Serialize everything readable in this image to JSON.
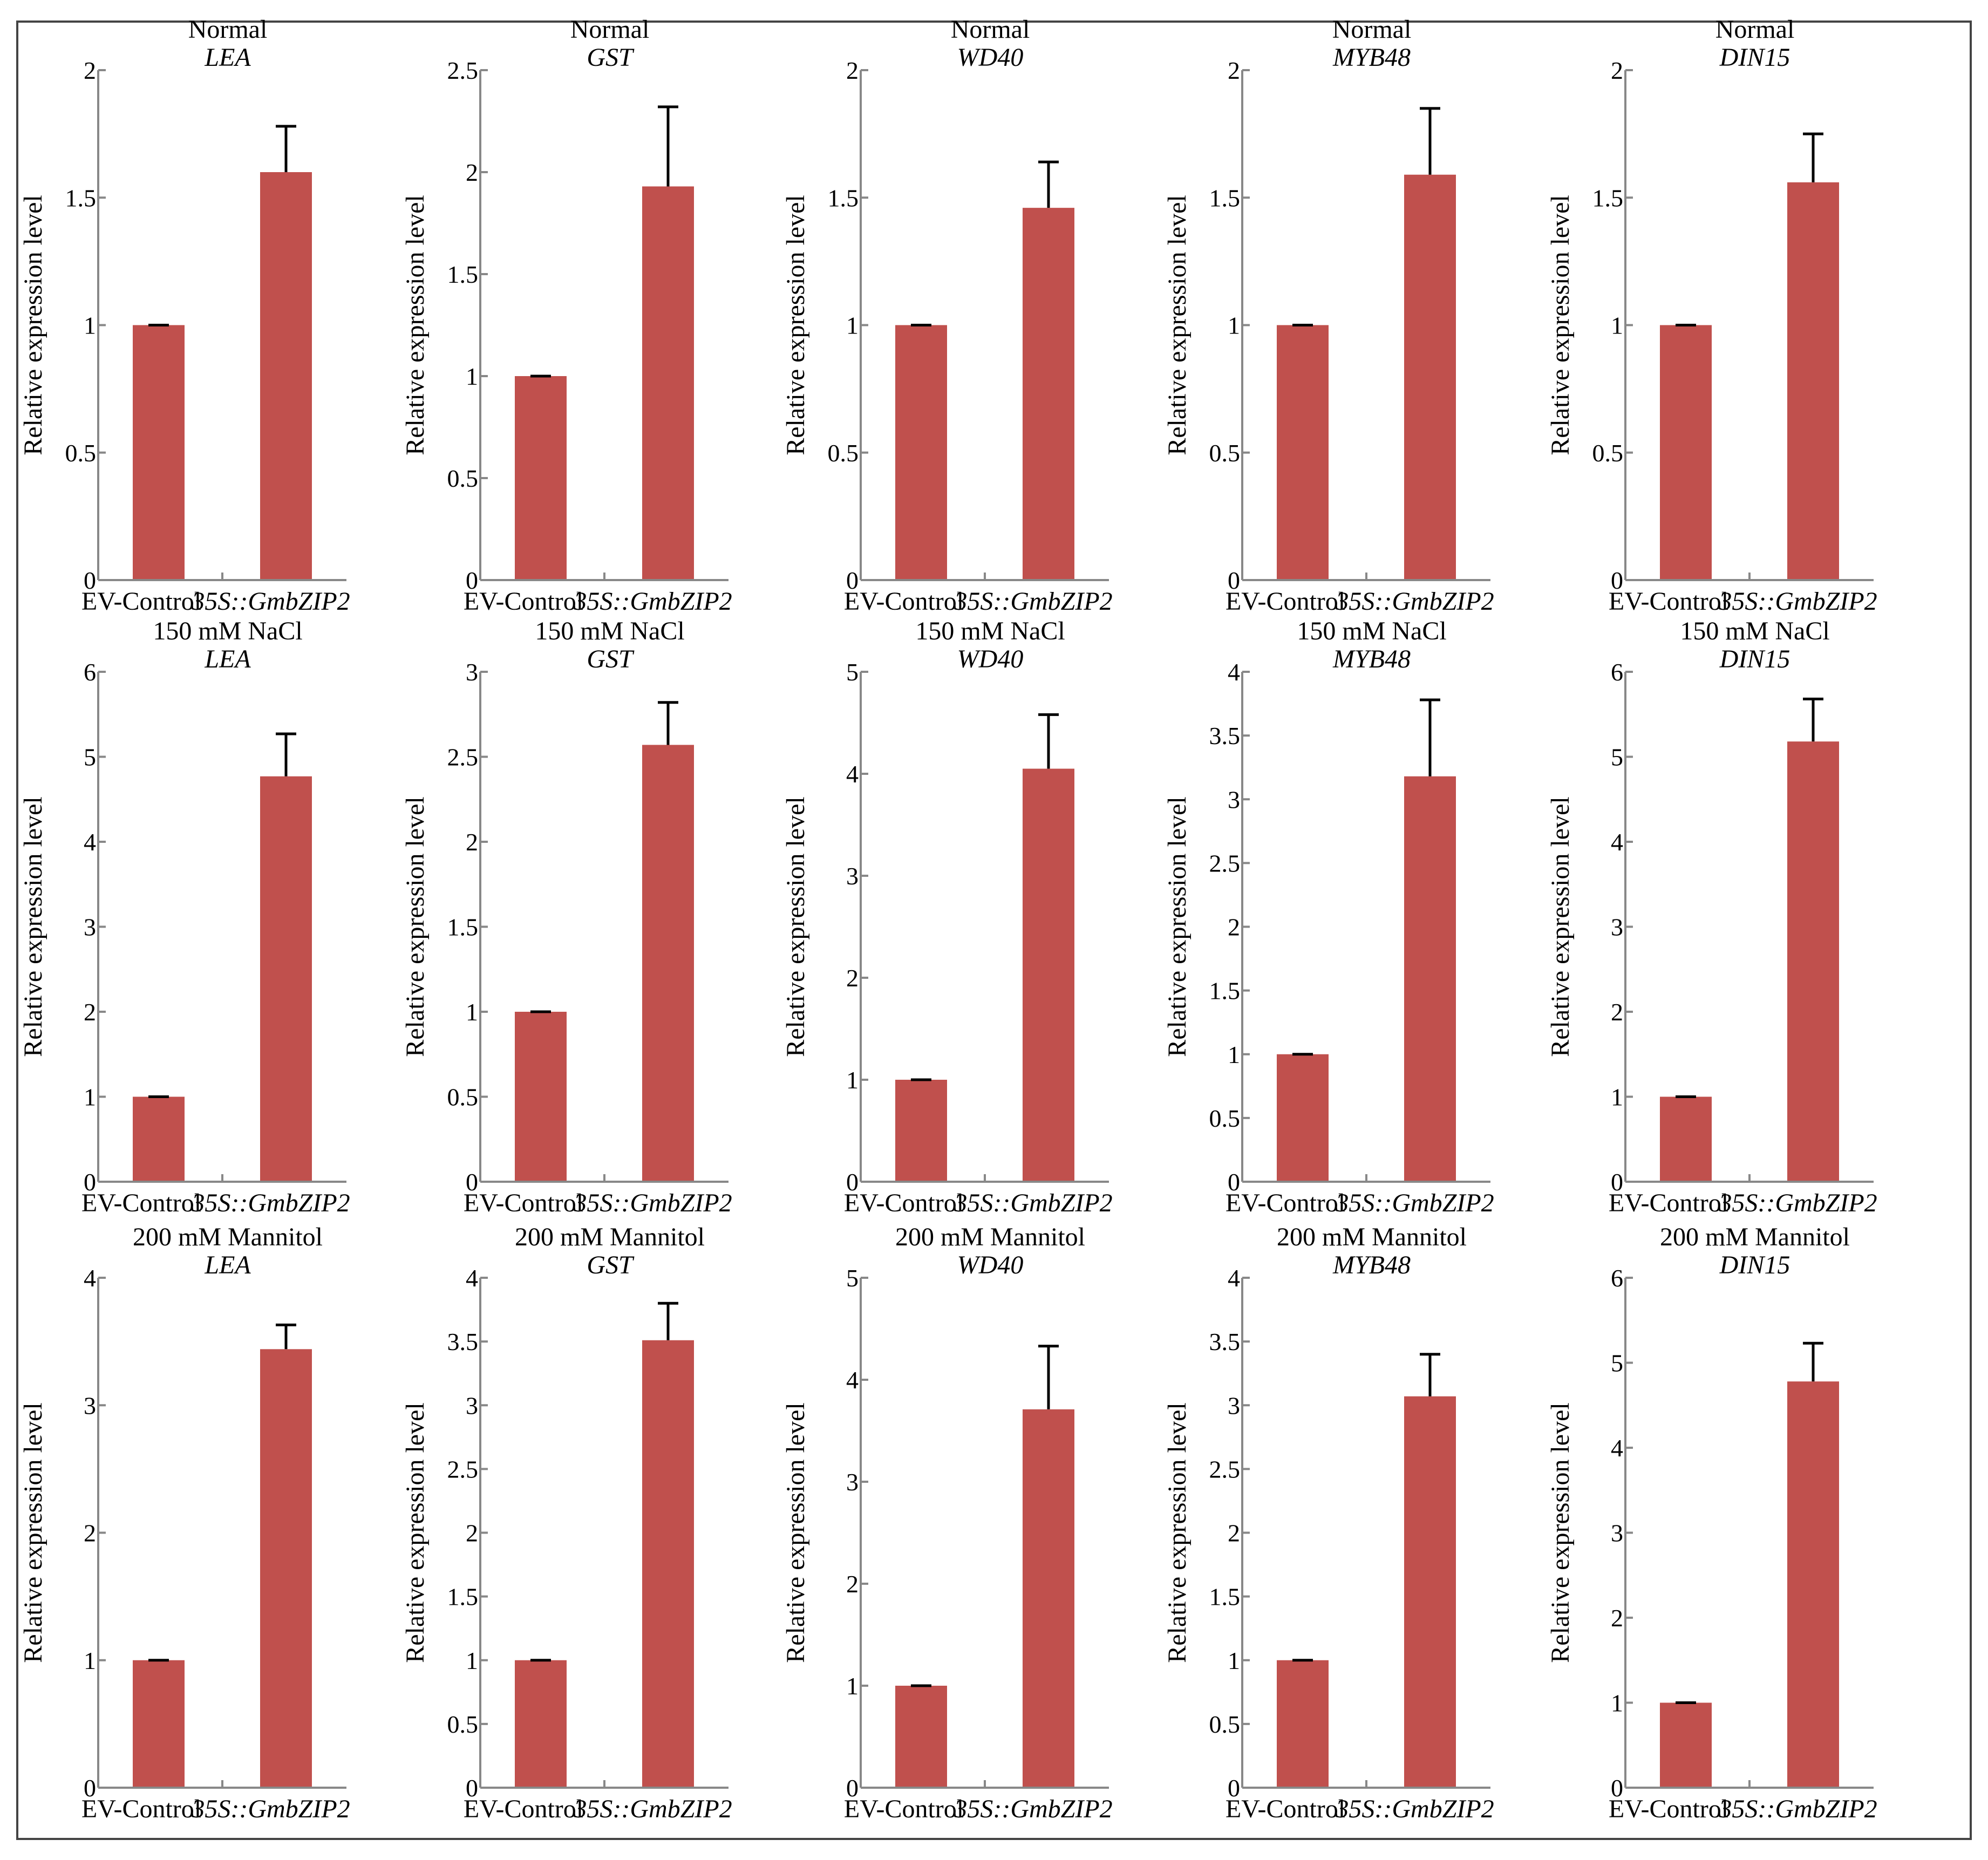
{
  "figure": {
    "bar_color": "#c0504d",
    "axis_color": "#888888",
    "frame_color": "#444444"
  },
  "chart_data": [
    {
      "type": "bar",
      "condition": "Normal",
      "gene": "LEA",
      "ylabel": "Relative expression level",
      "categories": [
        "EV-Control",
        "35S::GmbZIP2"
      ],
      "values": [
        1.0,
        1.6
      ],
      "errors": [
        0.0,
        0.18
      ],
      "ylim": [
        0,
        2
      ],
      "yticks": [
        "0",
        "0.5",
        "1",
        "1.5",
        "2"
      ],
      "ytick_values": [
        0,
        0.5,
        1,
        1.5,
        2
      ]
    },
    {
      "type": "bar",
      "condition": "Normal",
      "gene": "GST",
      "ylabel": "Relative expression level",
      "categories": [
        "EV-Control",
        "35S::GmbZIP2"
      ],
      "values": [
        1.0,
        1.93
      ],
      "errors": [
        0.0,
        0.39
      ],
      "ylim": [
        0,
        2.5
      ],
      "yticks": [
        "0",
        "0.5",
        "1",
        "1.5",
        "2",
        "2.5"
      ],
      "ytick_values": [
        0,
        0.5,
        1,
        1.5,
        2,
        2.5
      ]
    },
    {
      "type": "bar",
      "condition": "Normal",
      "gene": "WD40",
      "ylabel": "Relative expression level",
      "categories": [
        "EV-Control",
        "35S::GmbZIP2"
      ],
      "values": [
        1.0,
        1.46
      ],
      "errors": [
        0.0,
        0.18
      ],
      "ylim": [
        0,
        2
      ],
      "yticks": [
        "0",
        "0.5",
        "1",
        "1.5",
        "2"
      ],
      "ytick_values": [
        0,
        0.5,
        1,
        1.5,
        2
      ]
    },
    {
      "type": "bar",
      "condition": "Normal",
      "gene": "MYB48",
      "ylabel": "Relative expression level",
      "categories": [
        "EV-Control",
        "35S::GmbZIP2"
      ],
      "values": [
        1.0,
        1.59
      ],
      "errors": [
        0.0,
        0.26
      ],
      "ylim": [
        0,
        2
      ],
      "yticks": [
        "0",
        "0.5",
        "1",
        "1.5",
        "2"
      ],
      "ytick_values": [
        0,
        0.5,
        1,
        1.5,
        2
      ]
    },
    {
      "type": "bar",
      "condition": "Normal",
      "gene": "DIN15",
      "ylabel": "Relative expression level",
      "categories": [
        "EV-Control",
        "35S::GmbZIP2"
      ],
      "values": [
        1.0,
        1.56
      ],
      "errors": [
        0.0,
        0.19
      ],
      "ylim": [
        0,
        2
      ],
      "yticks": [
        "0",
        "0.5",
        "1",
        "1.5",
        "2"
      ],
      "ytick_values": [
        0,
        0.5,
        1,
        1.5,
        2
      ]
    },
    {
      "type": "bar",
      "condition": "150 mM NaCl",
      "gene": "LEA",
      "ylabel": "Relative expression level",
      "categories": [
        "EV-Control",
        "35S::GmbZIP2"
      ],
      "values": [
        1.0,
        4.77
      ],
      "errors": [
        0.0,
        0.5
      ],
      "ylim": [
        0,
        6
      ],
      "yticks": [
        "0",
        "1",
        "2",
        "3",
        "4",
        "5",
        "6"
      ],
      "ytick_values": [
        0,
        1,
        2,
        3,
        4,
        5,
        6
      ]
    },
    {
      "type": "bar",
      "condition": "150 mM NaCl",
      "gene": "GST",
      "ylabel": "Relative expression level",
      "categories": [
        "EV-Control",
        "35S::GmbZIP2"
      ],
      "values": [
        1.0,
        2.57
      ],
      "errors": [
        0.0,
        0.25
      ],
      "ylim": [
        0,
        3
      ],
      "yticks": [
        "0",
        "0.5",
        "1",
        "1.5",
        "2",
        "2.5",
        "3"
      ],
      "ytick_values": [
        0,
        0.5,
        1,
        1.5,
        2,
        2.5,
        3
      ]
    },
    {
      "type": "bar",
      "condition": "150 mM NaCl",
      "gene": "WD40",
      "ylabel": "Relative expression level",
      "categories": [
        "EV-Control",
        "35S::GmbZIP2"
      ],
      "values": [
        1.0,
        4.05
      ],
      "errors": [
        0.0,
        0.53
      ],
      "ylim": [
        0,
        5
      ],
      "yticks": [
        "0",
        "1",
        "2",
        "3",
        "4",
        "5"
      ],
      "ytick_values": [
        0,
        1,
        2,
        3,
        4,
        5
      ]
    },
    {
      "type": "bar",
      "condition": "150 mM NaCl",
      "gene": "MYB48",
      "ylabel": "Relative expression level",
      "categories": [
        "EV-Control",
        "35S::GmbZIP2"
      ],
      "values": [
        1.0,
        3.18
      ],
      "errors": [
        0.0,
        0.6
      ],
      "ylim": [
        0,
        4
      ],
      "yticks": [
        "0",
        "0.5",
        "1",
        "1.5",
        "2",
        "2.5",
        "3",
        "3.5",
        "4"
      ],
      "ytick_values": [
        0,
        0.5,
        1,
        1.5,
        2,
        2.5,
        3,
        3.5,
        4
      ]
    },
    {
      "type": "bar",
      "condition": "150 mM NaCl",
      "gene": "DIN15",
      "ylabel": "Relative expression level",
      "categories": [
        "EV-Control",
        "35S::GmbZIP2"
      ],
      "values": [
        1.0,
        5.18
      ],
      "errors": [
        0.0,
        0.5
      ],
      "ylim": [
        0,
        6
      ],
      "yticks": [
        "0",
        "1",
        "2",
        "3",
        "4",
        "5",
        "6"
      ],
      "ytick_values": [
        0,
        1,
        2,
        3,
        4,
        5,
        6
      ]
    },
    {
      "type": "bar",
      "condition": "200 mM Mannitol",
      "gene": "LEA",
      "ylabel": "Relative expression level",
      "categories": [
        "EV-Control",
        "35S::GmbZIP2"
      ],
      "values": [
        1.0,
        3.44
      ],
      "errors": [
        0.0,
        0.19
      ],
      "ylim": [
        0,
        4
      ],
      "yticks": [
        "0",
        "1",
        "2",
        "3",
        "4"
      ],
      "ytick_values": [
        0,
        1,
        2,
        3,
        4
      ]
    },
    {
      "type": "bar",
      "condition": "200 mM Mannitol",
      "gene": "GST",
      "ylabel": "Relative expression level",
      "categories": [
        "EV-Control",
        "35S::GmbZIP2"
      ],
      "values": [
        1.0,
        3.51
      ],
      "errors": [
        0.0,
        0.29
      ],
      "ylim": [
        0,
        4
      ],
      "yticks": [
        "0",
        "0.5",
        "1",
        "1.5",
        "2",
        "2.5",
        "3",
        "3.5",
        "4"
      ],
      "ytick_values": [
        0,
        0.5,
        1,
        1.5,
        2,
        2.5,
        3,
        3.5,
        4
      ]
    },
    {
      "type": "bar",
      "condition": "200 mM Mannitol",
      "gene": "WD40",
      "ylabel": "Relative expression level",
      "categories": [
        "EV-Control",
        "35S::GmbZIP2"
      ],
      "values": [
        1.0,
        3.71
      ],
      "errors": [
        0.0,
        0.62
      ],
      "ylim": [
        0,
        5
      ],
      "yticks": [
        "0",
        "1",
        "2",
        "3",
        "4",
        "5"
      ],
      "ytick_values": [
        0,
        1,
        2,
        3,
        4,
        5
      ]
    },
    {
      "type": "bar",
      "condition": "200 mM Mannitol",
      "gene": "MYB48",
      "ylabel": "Relative expression level",
      "categories": [
        "EV-Control",
        "35S::GmbZIP2"
      ],
      "values": [
        1.0,
        3.07
      ],
      "errors": [
        0.0,
        0.33
      ],
      "ylim": [
        0,
        4
      ],
      "yticks": [
        "0",
        "0.5",
        "1",
        "1.5",
        "2",
        "2.5",
        "3",
        "3.5",
        "4"
      ],
      "ytick_values": [
        0,
        0.5,
        1,
        1.5,
        2,
        2.5,
        3,
        3.5,
        4
      ]
    },
    {
      "type": "bar",
      "condition": "200 mM Mannitol",
      "gene": "DIN15",
      "ylabel": "Relative expression level",
      "categories": [
        "EV-Control",
        "35S::GmbZIP2"
      ],
      "values": [
        1.0,
        4.78
      ],
      "errors": [
        0.0,
        0.45
      ],
      "ylim": [
        0,
        6
      ],
      "yticks": [
        "0",
        "1",
        "2",
        "3",
        "4",
        "5",
        "6"
      ],
      "ytick_values": [
        0,
        1,
        2,
        3,
        4,
        5,
        6
      ]
    }
  ]
}
